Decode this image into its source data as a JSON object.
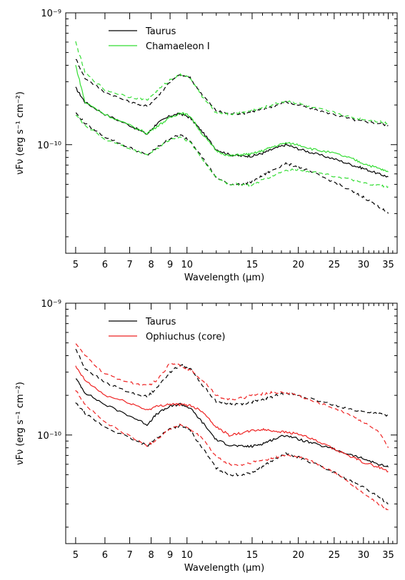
{
  "chart_data": [
    {
      "type": "line",
      "xlabel": "Wavelength (μm)",
      "ylabel": "νFν (erg s⁻¹ cm⁻²)",
      "xscale": "log",
      "yscale": "log",
      "xlim": [
        4.7,
        37
      ],
      "ylim": [
        1.5e-11,
        1e-09
      ],
      "xticks": [
        5,
        6,
        7,
        8,
        9,
        10,
        15,
        20,
        25,
        30,
        35
      ],
      "yticks": [
        {
          "value": 1e-10,
          "label": "10⁻¹⁰"
        },
        {
          "value": 1e-09,
          "label": "10⁻⁹"
        }
      ],
      "legend_position": "top-left",
      "series": [
        {
          "name": "Taurus",
          "color": "#000000",
          "style": "solid",
          "x": [
            5.0,
            5.3,
            6.0,
            7.0,
            7.8,
            8.3,
            9.0,
            9.6,
            10.2,
            11.0,
            12.0,
            13.0,
            14.0,
            15.0,
            16.0,
            17.0,
            18.5,
            20.0,
            22.0,
            25.0,
            28.0,
            30.0,
            33.0,
            35.0
          ],
          "y": [
            2.7e-10,
            2.1e-10,
            1.7e-10,
            1.4e-10,
            1.2e-10,
            1.45e-10,
            1.65e-10,
            1.72e-10,
            1.6e-10,
            1.25e-10,
            9.2e-11,
            8.4e-11,
            8.2e-11,
            8.2e-11,
            8.6e-11,
            9.2e-11,
            1e-10,
            9.3e-11,
            8.6e-11,
            7.8e-11,
            7e-11,
            6.6e-11,
            6e-11,
            5.7e-11
          ]
        },
        {
          "name": "",
          "color": "#000000",
          "style": "dashed",
          "x": [
            5.0,
            5.3,
            6.0,
            7.0,
            7.8,
            8.3,
            9.0,
            9.6,
            10.2,
            11.0,
            12.0,
            13.0,
            14.0,
            15.0,
            16.0,
            17.0,
            18.5,
            20.0,
            22.0,
            25.0,
            28.0,
            30.0,
            33.0,
            35.0
          ],
          "y": [
            4.5e-10,
            3.2e-10,
            2.5e-10,
            2.1e-10,
            1.95e-10,
            2.3e-10,
            3e-10,
            3.4e-10,
            3.2e-10,
            2.4e-10,
            1.8e-10,
            1.72e-10,
            1.72e-10,
            1.78e-10,
            1.85e-10,
            1.95e-10,
            2.1e-10,
            2e-10,
            1.85e-10,
            1.7e-10,
            1.55e-10,
            1.5e-10,
            1.45e-10,
            1.4e-10
          ]
        },
        {
          "name": "",
          "color": "#000000",
          "style": "dashed",
          "x": [
            5.0,
            5.3,
            6.0,
            7.0,
            7.8,
            8.3,
            9.0,
            9.6,
            10.2,
            11.0,
            12.0,
            13.0,
            14.0,
            15.0,
            16.0,
            17.0,
            18.5,
            20.0,
            22.0,
            25.0,
            28.0,
            30.0,
            33.0,
            35.0
          ],
          "y": [
            1.75e-10,
            1.45e-10,
            1.15e-10,
            9.5e-11,
            8.3e-11,
            9.5e-11,
            1.12e-10,
            1.18e-10,
            1.08e-10,
            8e-11,
            5.6e-11,
            5e-11,
            5e-11,
            5.2e-11,
            5.8e-11,
            6.4e-11,
            7.2e-11,
            6.8e-11,
            6.1e-11,
            5.2e-11,
            4.4e-11,
            4e-11,
            3.4e-11,
            3e-11
          ]
        },
        {
          "name": "Chamaeleon I",
          "color": "#33dd33",
          "style": "solid",
          "x": [
            5.0,
            5.3,
            6.0,
            7.0,
            7.8,
            8.3,
            9.0,
            9.6,
            10.2,
            11.0,
            12.0,
            13.0,
            14.0,
            15.0,
            16.0,
            17.0,
            18.5,
            20.0,
            22.0,
            25.0,
            28.0,
            30.0,
            33.0,
            35.0
          ],
          "y": [
            4e-10,
            2.1e-10,
            1.7e-10,
            1.4e-10,
            1.22e-10,
            1.38e-10,
            1.6e-10,
            1.75e-10,
            1.65e-10,
            1.2e-10,
            9e-11,
            8.2e-11,
            8.4e-11,
            8.5e-11,
            9e-11,
            9.6e-11,
            1.03e-10,
            1e-10,
            9.2e-11,
            8.6e-11,
            7.8e-11,
            7.2e-11,
            6.6e-11,
            6.2e-11
          ]
        },
        {
          "name": "",
          "color": "#33dd33",
          "style": "dashed",
          "x": [
            5.0,
            5.3,
            6.0,
            7.0,
            7.8,
            8.3,
            9.0,
            9.6,
            10.2,
            11.0,
            12.0,
            13.0,
            14.0,
            15.0,
            16.0,
            17.0,
            18.5,
            20.0,
            22.0,
            25.0,
            28.0,
            30.0,
            33.0,
            35.0
          ],
          "y": [
            6e-10,
            3.5e-10,
            2.6e-10,
            2.3e-10,
            2.2e-10,
            2.55e-10,
            3.1e-10,
            3.4e-10,
            3.2e-10,
            2.3e-10,
            1.75e-10,
            1.7e-10,
            1.75e-10,
            1.82e-10,
            1.9e-10,
            2e-10,
            2.15e-10,
            2.05e-10,
            1.9e-10,
            1.75e-10,
            1.6e-10,
            1.55e-10,
            1.5e-10,
            1.45e-10
          ]
        },
        {
          "name": "",
          "color": "#33dd33",
          "style": "dashed",
          "x": [
            5.0,
            5.3,
            6.0,
            7.0,
            7.8,
            8.3,
            9.0,
            9.6,
            10.2,
            11.0,
            12.0,
            13.0,
            14.0,
            15.0,
            16.0,
            17.0,
            18.5,
            20.0,
            22.0,
            25.0,
            28.0,
            30.0,
            33.0,
            35.0
          ],
          "y": [
            1.7e-10,
            1.4e-10,
            1.1e-10,
            9.3e-11,
            8.4e-11,
            9.3e-11,
            1.1e-10,
            1.15e-10,
            1.05e-10,
            7.8e-11,
            5.6e-11,
            5e-11,
            5e-11,
            4.9e-11,
            5.4e-11,
            5.8e-11,
            6.4e-11,
            6.5e-11,
            6.2e-11,
            5.8e-11,
            5.4e-11,
            5.1e-11,
            4.9e-11,
            4.8e-11
          ]
        }
      ]
    },
    {
      "type": "line",
      "xlabel": "Wavelength (μm)",
      "ylabel": "νFν (erg s⁻¹ cm⁻²)",
      "xscale": "log",
      "yscale": "log",
      "xlim": [
        4.7,
        37
      ],
      "ylim": [
        1.5e-11,
        1e-09
      ],
      "xticks": [
        5,
        6,
        7,
        8,
        9,
        10,
        15,
        20,
        25,
        30,
        35
      ],
      "yticks": [
        {
          "value": 1e-10,
          "label": "10⁻¹⁰"
        },
        {
          "value": 1e-09,
          "label": "10⁻⁹"
        }
      ],
      "legend_position": "top-left",
      "series": [
        {
          "name": "Taurus",
          "color": "#000000",
          "style": "solid",
          "x": [
            5.0,
            5.3,
            6.0,
            7.0,
            7.8,
            8.3,
            9.0,
            9.6,
            10.2,
            11.0,
            12.0,
            13.0,
            14.0,
            15.0,
            16.0,
            17.0,
            18.5,
            20.0,
            22.0,
            25.0,
            28.0,
            30.0,
            33.0,
            35.0
          ],
          "y": [
            2.7e-10,
            2.1e-10,
            1.7e-10,
            1.4e-10,
            1.2e-10,
            1.45e-10,
            1.65e-10,
            1.72e-10,
            1.6e-10,
            1.25e-10,
            9.2e-11,
            8.4e-11,
            8.2e-11,
            8.2e-11,
            8.6e-11,
            9.2e-11,
            1e-10,
            9.3e-11,
            8.6e-11,
            7.8e-11,
            7e-11,
            6.6e-11,
            6e-11,
            5.7e-11
          ]
        },
        {
          "name": "",
          "color": "#000000",
          "style": "dashed",
          "x": [
            5.0,
            5.3,
            6.0,
            7.0,
            7.8,
            8.3,
            9.0,
            9.6,
            10.2,
            11.0,
            12.0,
            13.0,
            14.0,
            15.0,
            16.0,
            17.0,
            18.5,
            20.0,
            22.0,
            25.0,
            28.0,
            30.0,
            33.0,
            35.0
          ],
          "y": [
            4.5e-10,
            3.2e-10,
            2.5e-10,
            2.1e-10,
            1.95e-10,
            2.3e-10,
            3e-10,
            3.4e-10,
            3.2e-10,
            2.4e-10,
            1.8e-10,
            1.72e-10,
            1.72e-10,
            1.78e-10,
            1.85e-10,
            1.95e-10,
            2.1e-10,
            2e-10,
            1.85e-10,
            1.7e-10,
            1.55e-10,
            1.5e-10,
            1.45e-10,
            1.4e-10
          ]
        },
        {
          "name": "",
          "color": "#000000",
          "style": "dashed",
          "x": [
            5.0,
            5.3,
            6.0,
            7.0,
            7.8,
            8.3,
            9.0,
            9.6,
            10.2,
            11.0,
            12.0,
            13.0,
            14.0,
            15.0,
            16.0,
            17.0,
            18.5,
            20.0,
            22.0,
            25.0,
            28.0,
            30.0,
            33.0,
            35.0
          ],
          "y": [
            1.75e-10,
            1.45e-10,
            1.15e-10,
            9.5e-11,
            8.3e-11,
            9.5e-11,
            1.12e-10,
            1.18e-10,
            1.08e-10,
            8e-11,
            5.6e-11,
            5e-11,
            5e-11,
            5.2e-11,
            5.8e-11,
            6.4e-11,
            7.2e-11,
            6.8e-11,
            6.1e-11,
            5.2e-11,
            4.4e-11,
            4e-11,
            3.4e-11,
            3e-11
          ]
        },
        {
          "name": "Ophiuchus (core)",
          "color": "#ee2222",
          "style": "solid",
          "x": [
            5.0,
            5.3,
            6.0,
            7.0,
            7.8,
            8.3,
            9.0,
            9.6,
            10.2,
            11.0,
            12.0,
            13.0,
            14.0,
            15.0,
            16.0,
            17.0,
            18.5,
            20.0,
            22.0,
            25.0,
            28.0,
            30.0,
            33.0,
            35.0
          ],
          "y": [
            3.3e-10,
            2.6e-10,
            2e-10,
            1.75e-10,
            1.55e-10,
            1.65e-10,
            1.72e-10,
            1.7e-10,
            1.68e-10,
            1.52e-10,
            1.15e-10,
            1e-10,
            1.03e-10,
            1.08e-10,
            1.1e-10,
            1.08e-10,
            1.05e-10,
            1.02e-10,
            9.2e-11,
            7.8e-11,
            6.8e-11,
            6.2e-11,
            5.7e-11,
            5.3e-11
          ]
        },
        {
          "name": "",
          "color": "#ee2222",
          "style": "dashed",
          "x": [
            5.0,
            5.3,
            6.0,
            7.0,
            7.8,
            8.3,
            9.0,
            9.6,
            10.2,
            11.0,
            12.0,
            13.0,
            14.0,
            15.0,
            16.0,
            17.0,
            18.5,
            20.0,
            22.0,
            25.0,
            28.0,
            30.0,
            33.0,
            35.0
          ],
          "y": [
            5e-10,
            4e-10,
            2.9e-10,
            2.5e-10,
            2.35e-10,
            2.6e-10,
            3.5e-10,
            3.4e-10,
            3.1e-10,
            2.6e-10,
            2e-10,
            1.85e-10,
            1.9e-10,
            2e-10,
            2.05e-10,
            2.1e-10,
            2.1e-10,
            2e-10,
            1.8e-10,
            1.6e-10,
            1.4e-10,
            1.25e-10,
            1.05e-10,
            8e-11
          ]
        },
        {
          "name": "",
          "color": "#ee2222",
          "style": "dashed",
          "x": [
            5.0,
            5.3,
            6.0,
            7.0,
            7.8,
            8.3,
            9.0,
            9.6,
            10.2,
            11.0,
            12.0,
            13.0,
            14.0,
            15.0,
            16.0,
            17.0,
            18.5,
            20.0,
            22.0,
            25.0,
            28.0,
            30.0,
            33.0,
            35.0
          ],
          "y": [
            2.2e-10,
            1.7e-10,
            1.25e-10,
            9.8e-11,
            8.3e-11,
            9.3e-11,
            1.12e-10,
            1.2e-10,
            1.1e-10,
            9.5e-11,
            6.8e-11,
            6e-11,
            5.9e-11,
            6.2e-11,
            6.4e-11,
            6.7e-11,
            7e-11,
            6.9e-11,
            6.2e-11,
            5.2e-11,
            4.2e-11,
            3.6e-11,
            3e-11,
            2.7e-11
          ]
        }
      ]
    }
  ]
}
